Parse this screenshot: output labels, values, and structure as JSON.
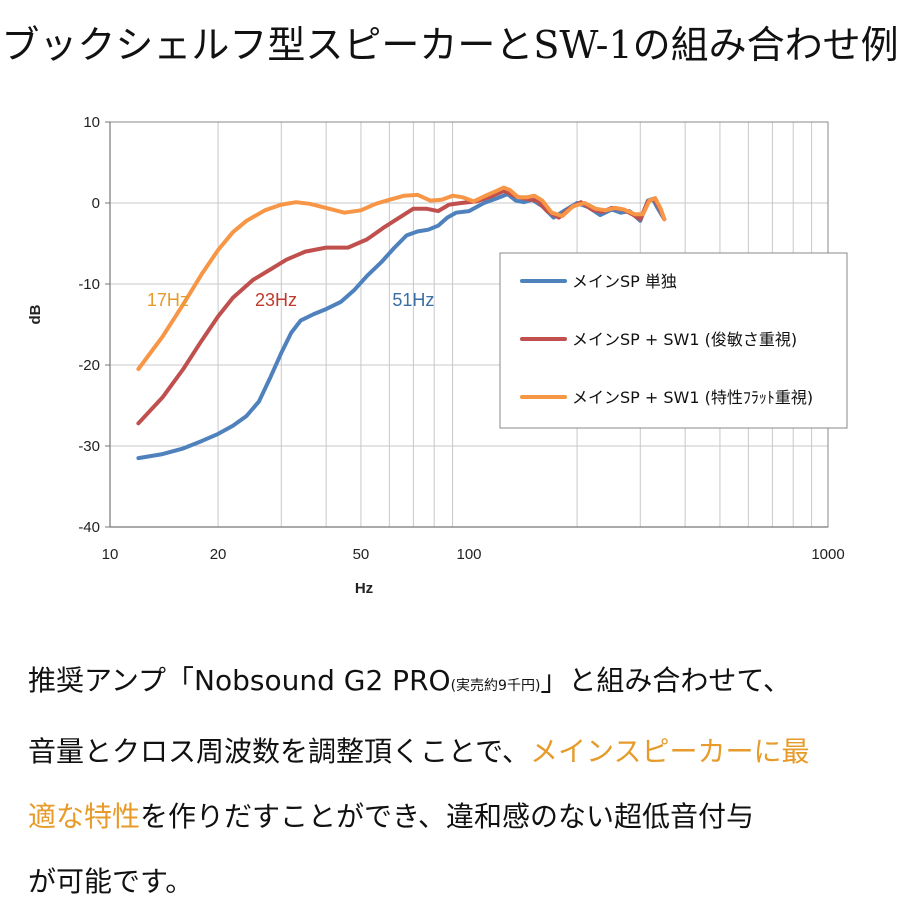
{
  "title": "ブックシェルフ型スピーカーとSW-1の組み合わせ例",
  "chart_data": {
    "type": "line",
    "xscale": "log",
    "xlim": [
      10,
      1000
    ],
    "ylim": [
      -40,
      10
    ],
    "xlabel": "Hz",
    "ylabel": "dB",
    "x_ticks": [
      "10",
      "20",
      "50",
      "100",
      "1000"
    ],
    "y_ticks": [
      "10",
      "0",
      "-10",
      "-20",
      "-30",
      "-40"
    ],
    "grid": true,
    "legend_position": "right",
    "series": [
      {
        "name": "メインSP 単独",
        "color": "#4f81bd",
        "points": [
          [
            12,
            -31.5
          ],
          [
            14,
            -31
          ],
          [
            16,
            -30.3
          ],
          [
            18,
            -29.4
          ],
          [
            20,
            -28.5
          ],
          [
            22,
            -27.5
          ],
          [
            24,
            -26.3
          ],
          [
            26,
            -24.5
          ],
          [
            28,
            -21.5
          ],
          [
            30,
            -18.5
          ],
          [
            32,
            -16
          ],
          [
            34,
            -14.5
          ],
          [
            37,
            -13.7
          ],
          [
            40,
            -13.1
          ],
          [
            44,
            -12.2
          ],
          [
            48,
            -10.7
          ],
          [
            52,
            -9
          ],
          [
            57,
            -7.3
          ],
          [
            62,
            -5.5
          ],
          [
            67,
            -4
          ],
          [
            72,
            -3.5
          ],
          [
            77,
            -3.3
          ],
          [
            82,
            -2.8
          ],
          [
            87,
            -1.8
          ],
          [
            92,
            -1.2
          ],
          [
            100,
            -1
          ],
          [
            110,
            0
          ],
          [
            120,
            0.6
          ],
          [
            128,
            1.1
          ],
          [
            135,
            0.3
          ],
          [
            142,
            0.1
          ],
          [
            150,
            0.4
          ],
          [
            160,
            -0.4
          ],
          [
            172,
            -1.8
          ],
          [
            185,
            -0.9
          ],
          [
            200,
            0
          ],
          [
            215,
            -0.5
          ],
          [
            232,
            -1.5
          ],
          [
            250,
            -0.8
          ],
          [
            265,
            -1.2
          ],
          [
            280,
            -1
          ],
          [
            300,
            -2.2
          ],
          [
            315,
            0.3
          ],
          [
            325,
            0.5
          ],
          [
            335,
            -0.6
          ],
          [
            350,
            -2
          ]
        ]
      },
      {
        "name": "メインSP + SW1 (俊敏さ重視)",
        "color": "#c0504d",
        "points": [
          [
            12,
            -27.2
          ],
          [
            14,
            -24
          ],
          [
            16,
            -20.5
          ],
          [
            18,
            -17
          ],
          [
            20,
            -14
          ],
          [
            22,
            -11.7
          ],
          [
            25,
            -9.5
          ],
          [
            28,
            -8.2
          ],
          [
            31,
            -7
          ],
          [
            35,
            -6
          ],
          [
            40,
            -5.5
          ],
          [
            46,
            -5.5
          ],
          [
            52,
            -4.5
          ],
          [
            58,
            -3
          ],
          [
            64,
            -1.8
          ],
          [
            70,
            -0.7
          ],
          [
            76,
            -0.7
          ],
          [
            82,
            -1
          ],
          [
            88,
            -0.2
          ],
          [
            95,
            0
          ],
          [
            105,
            0.2
          ],
          [
            115,
            0.8
          ],
          [
            125,
            1.5
          ],
          [
            135,
            0.8
          ],
          [
            145,
            0.5
          ],
          [
            155,
            0.3
          ],
          [
            165,
            -1
          ],
          [
            178,
            -1.8
          ],
          [
            190,
            -0.7
          ],
          [
            205,
            0.1
          ],
          [
            220,
            -0.8
          ],
          [
            235,
            -1.1
          ],
          [
            250,
            -0.6
          ],
          [
            268,
            -0.8
          ],
          [
            285,
            -1.4
          ],
          [
            300,
            -2
          ],
          [
            315,
            0.2
          ],
          [
            328,
            0.5
          ],
          [
            340,
            -0.7
          ],
          [
            350,
            -2
          ]
        ]
      },
      {
        "name": "メインSP + SW1 (特性ﾌﾗｯﾄ重視)",
        "color": "#f79646",
        "points": [
          [
            12,
            -20.5
          ],
          [
            14,
            -16.5
          ],
          [
            16,
            -12.5
          ],
          [
            18,
            -8.8
          ],
          [
            20,
            -5.8
          ],
          [
            22,
            -3.6
          ],
          [
            24,
            -2.2
          ],
          [
            27,
            -0.9
          ],
          [
            30,
            -0.2
          ],
          [
            33,
            0.1
          ],
          [
            36,
            -0.1
          ],
          [
            40,
            -0.6
          ],
          [
            45,
            -1.2
          ],
          [
            50,
            -0.9
          ],
          [
            55,
            -0.1
          ],
          [
            60,
            0.4
          ],
          [
            66,
            0.9
          ],
          [
            72,
            1
          ],
          [
            78,
            0.3
          ],
          [
            84,
            0.4
          ],
          [
            90,
            0.9
          ],
          [
            96,
            0.7
          ],
          [
            103,
            0.2
          ],
          [
            110,
            0.8
          ],
          [
            118,
            1.4
          ],
          [
            125,
            1.9
          ],
          [
            130,
            1.6
          ],
          [
            137,
            0.7
          ],
          [
            145,
            0.7
          ],
          [
            152,
            0.9
          ],
          [
            160,
            0.3
          ],
          [
            170,
            -1.2
          ],
          [
            182,
            -1.6
          ],
          [
            195,
            -0.4
          ],
          [
            210,
            0
          ],
          [
            225,
            -0.7
          ],
          [
            240,
            -0.9
          ],
          [
            255,
            -0.6
          ],
          [
            270,
            -0.8
          ],
          [
            290,
            -1.4
          ],
          [
            305,
            -1.4
          ],
          [
            318,
            0.3
          ],
          [
            330,
            0.6
          ],
          [
            342,
            -0.7
          ],
          [
            350,
            -2
          ]
        ]
      }
    ],
    "annotations": [
      {
        "text": "17Hz",
        "x": 14.5,
        "y": -12,
        "color": "#e69b2b"
      },
      {
        "text": "23Hz",
        "x": 29,
        "y": -12,
        "color": "#c0392b"
      },
      {
        "text": "51Hz",
        "x": 70,
        "y": -12,
        "color": "#3a6ea5"
      }
    ]
  },
  "body": {
    "line1_a": "推奨アンプ「Nobsound G2 PRO",
    "line1_small": "(実売約9千円)",
    "line1_b": "」と組み合わせて、",
    "line2_a": "音量とクロス周波数を調整頂くことで、",
    "line2_hl": "メインスピーカーに最",
    "line3_hl": "適な特性",
    "line3_b": "を作りだすことができ、違和感のない超低音付与",
    "line4": "が可能です。"
  }
}
